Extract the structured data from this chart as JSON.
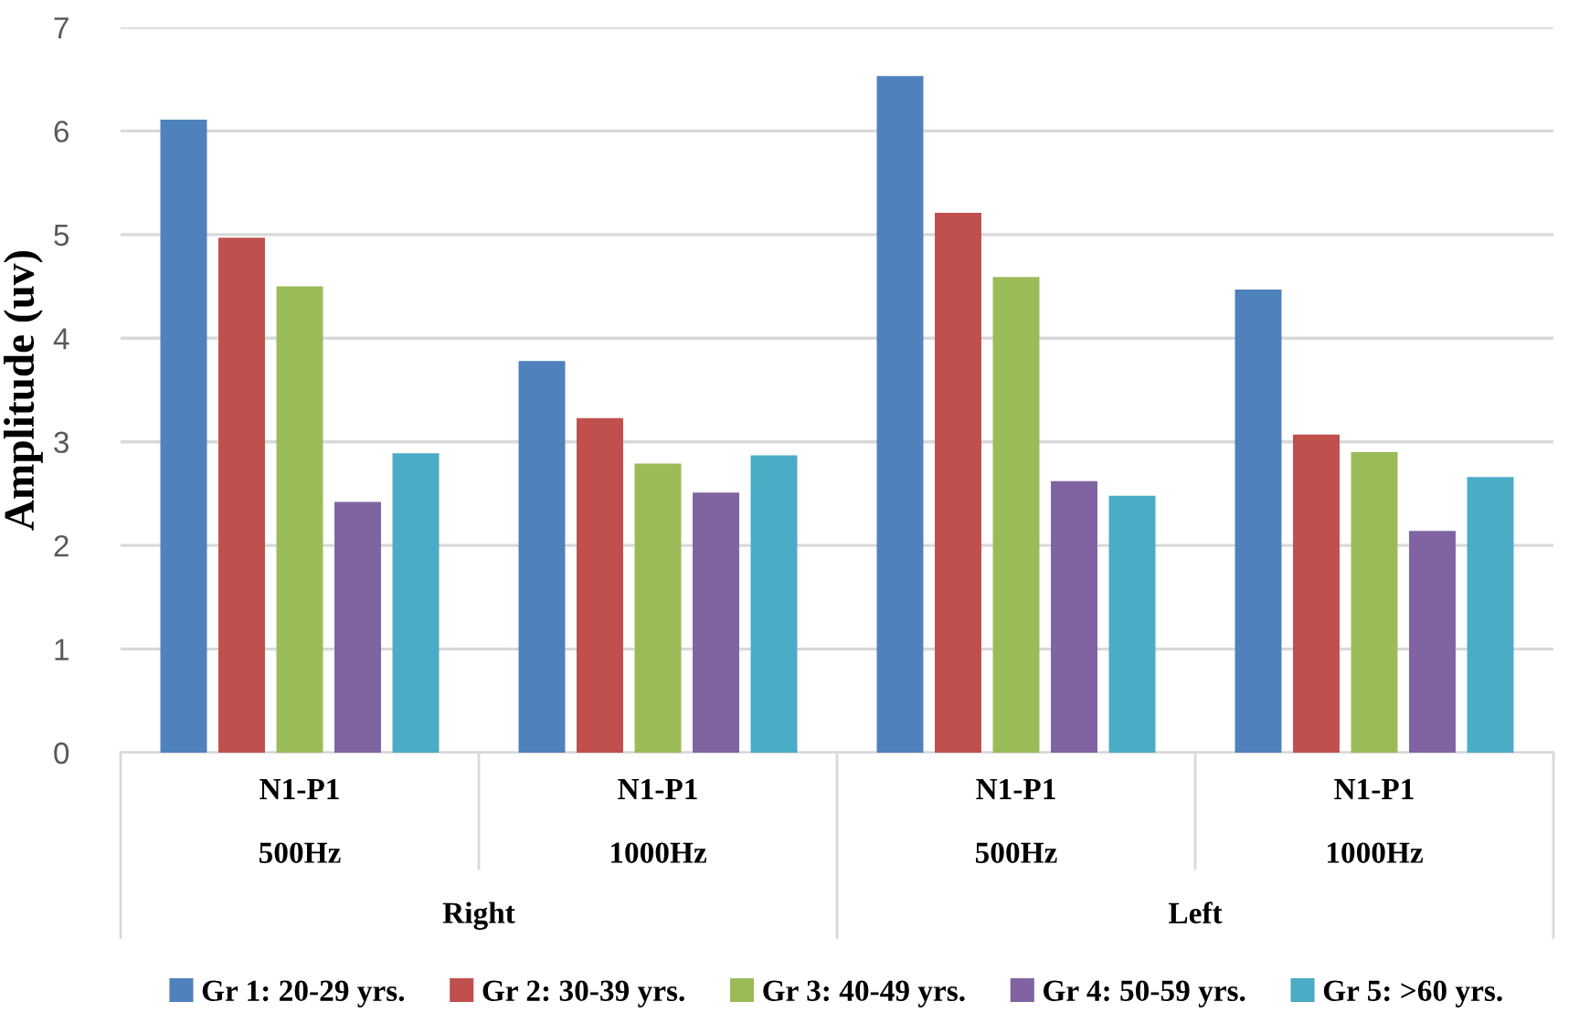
{
  "chart_data": {
    "type": "bar",
    "ylabel": "Amplitude (uv)",
    "categories": [
      "N1-P1\n\n500Hz",
      "N1-P1\n\n1000Hz",
      "N1-P1\n\n500Hz",
      "N1-P1\n\n1000Hz"
    ],
    "annotations": [
      "Right",
      "Left"
    ],
    "series": [
      {
        "name": "Gr 1: 20-29 yrs.",
        "color": "#4f81bd",
        "values": [
          6.11,
          3.78,
          6.53,
          4.47
        ]
      },
      {
        "name": "Gr 2: 30-39 yrs.",
        "color": "#c0504d",
        "values": [
          4.97,
          3.23,
          5.21,
          3.07
        ]
      },
      {
        "name": "Gr 3: 40-49 yrs.",
        "color": "#9bbb59",
        "values": [
          4.5,
          2.79,
          4.59,
          2.9
        ]
      },
      {
        "name": "Gr 4: 50-59 yrs.",
        "color": "#8064a2",
        "values": [
          2.42,
          2.51,
          2.62,
          2.14
        ]
      },
      {
        "name": "Gr 5: >60 yrs.",
        "color": "#4bacc6",
        "values": [
          2.89,
          2.87,
          2.48,
          2.66
        ]
      }
    ],
    "ylim": [
      0,
      7
    ],
    "yticks": [
      0,
      1,
      2,
      3,
      4,
      5,
      6,
      7
    ],
    "grid": "y",
    "legend": "bottom"
  }
}
